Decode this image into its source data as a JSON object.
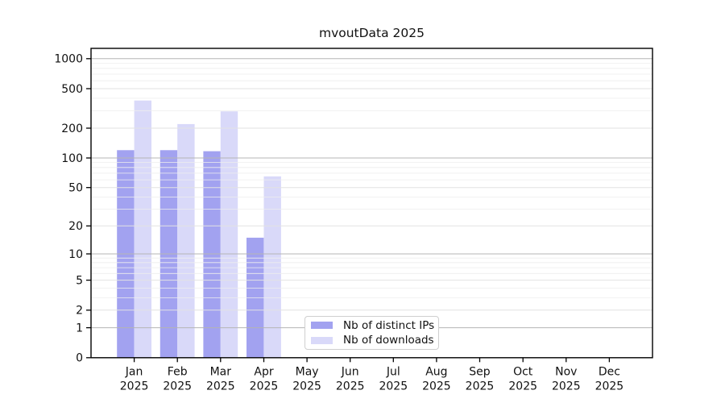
{
  "chart_data": {
    "type": "bar",
    "title": "mvoutData 2025",
    "scale": "log10(1+x)",
    "categories": [
      "Jan",
      "Feb",
      "Mar",
      "Apr",
      "May",
      "Jun",
      "Jul",
      "Aug",
      "Sep",
      "Oct",
      "Nov",
      "Dec"
    ],
    "category_year": "2025",
    "series": [
      {
        "name": "Nb of distinct IPs",
        "color": "#a2a2f0",
        "values": [
          120,
          120,
          117,
          15,
          0,
          0,
          0,
          0,
          0,
          0,
          0,
          0
        ]
      },
      {
        "name": "Nb of downloads",
        "color": "#d9d9f9",
        "values": [
          380,
          220,
          295,
          65,
          0,
          0,
          0,
          0,
          0,
          0,
          0,
          0
        ]
      }
    ],
    "y_ticks": [
      0,
      1,
      2,
      5,
      10,
      20,
      50,
      100,
      200,
      500,
      1000
    ],
    "y_minor_ticks": [
      3,
      4,
      6,
      7,
      8,
      9,
      30,
      40,
      60,
      70,
      80,
      90,
      300,
      400,
      600,
      700,
      800,
      900
    ],
    "y_decade_ticks": [
      1,
      10,
      100,
      1000
    ],
    "ylim": [
      0,
      1270
    ],
    "grid": true,
    "legend_position": "bottom-center",
    "colors": {
      "background": "#ffffff",
      "spine": "#000000",
      "grid_decade": "#b5b5b5",
      "grid_major": "#e2e2e2",
      "grid_minor": "#eeeeee",
      "tick_label": "#111111",
      "legend_border": "#cfcfcf"
    }
  }
}
